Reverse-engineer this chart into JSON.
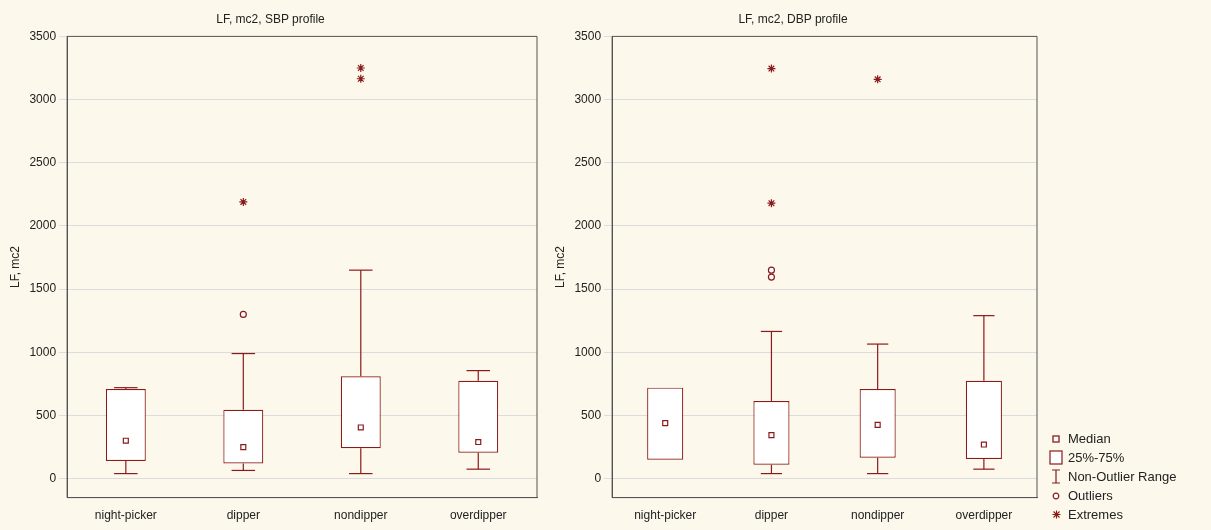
{
  "chart_data": [
    {
      "type": "box",
      "title": "LF, mc2, SBP profile",
      "ylabel": "LF, mc2",
      "categories": [
        "night-picker",
        "dipper",
        "nondipper",
        "overdipper"
      ],
      "ylim": [
        -150,
        3500
      ],
      "yticks": [
        0,
        500,
        1000,
        1500,
        2000,
        2500,
        3000,
        3500
      ],
      "grid": "y",
      "legend": false,
      "series": [
        {
          "type": "box",
          "color": "#8b1a1a",
          "boxes": [
            {
              "low": 40,
              "q1": 140,
              "median": 300,
              "q3": 710,
              "high": 720
            },
            {
              "low": 65,
              "q1": 120,
              "median": 250,
              "q3": 545,
              "high": 990,
              "outliers": [
                1300
              ]
            },
            {
              "low": 40,
              "q1": 240,
              "median": 405,
              "q3": 810,
              "high": 1650
            },
            {
              "low": 75,
              "q1": 205,
              "median": 290,
              "q3": 775,
              "high": 855
            }
          ]
        },
        {
          "type": "scatter",
          "color": "#8b1a1a",
          "marker": "cross",
          "x": [
            "dipper",
            "nondipper",
            "nondipper"
          ],
          "values": [
            2190,
            3165,
            3250
          ]
        }
      ]
    },
    {
      "type": "box",
      "title": "LF, mc2, DBP profile",
      "ylabel": "LF, mc2",
      "categories": [
        "night-picker",
        "dipper",
        "nondipper",
        "overdipper"
      ],
      "ylim": [
        -150,
        3500
      ],
      "yticks": [
        0,
        500,
        1000,
        1500,
        2000,
        2500,
        3000,
        3500
      ],
      "grid": "y",
      "legend": "bottom right",
      "annotations": [
        "Median",
        "25%-75%",
        "Non-Outlier Range",
        "Outliers"
      ],
      "series": [
        {
          "type": "box",
          "color": "#8b1a1a",
          "boxes": [
            {
              "low": 150,
              "q1": 150,
              "median": 440,
              "q3": 720,
              "high": 720
            },
            {
              "low": 40,
              "q1": 110,
              "median": 345,
              "q3": 615,
              "high": 1165,
              "outliers": [
                1595,
                1650
              ]
            },
            {
              "low": 40,
              "q1": 165,
              "median": 425,
              "q3": 710,
              "high": 1065
            },
            {
              "low": 75,
              "q1": 155,
              "median": 270,
              "q3": 775,
              "high": 1290
            }
          ]
        },
        {
          "type": "scatter",
          "name": "Extremes",
          "color": "#8b1a1a",
          "marker": "cross",
          "x": [
            "dipper",
            "dipper",
            "nondipper"
          ],
          "values": [
            2180,
            3245,
            3160
          ]
        }
      ]
    }
  ]
}
